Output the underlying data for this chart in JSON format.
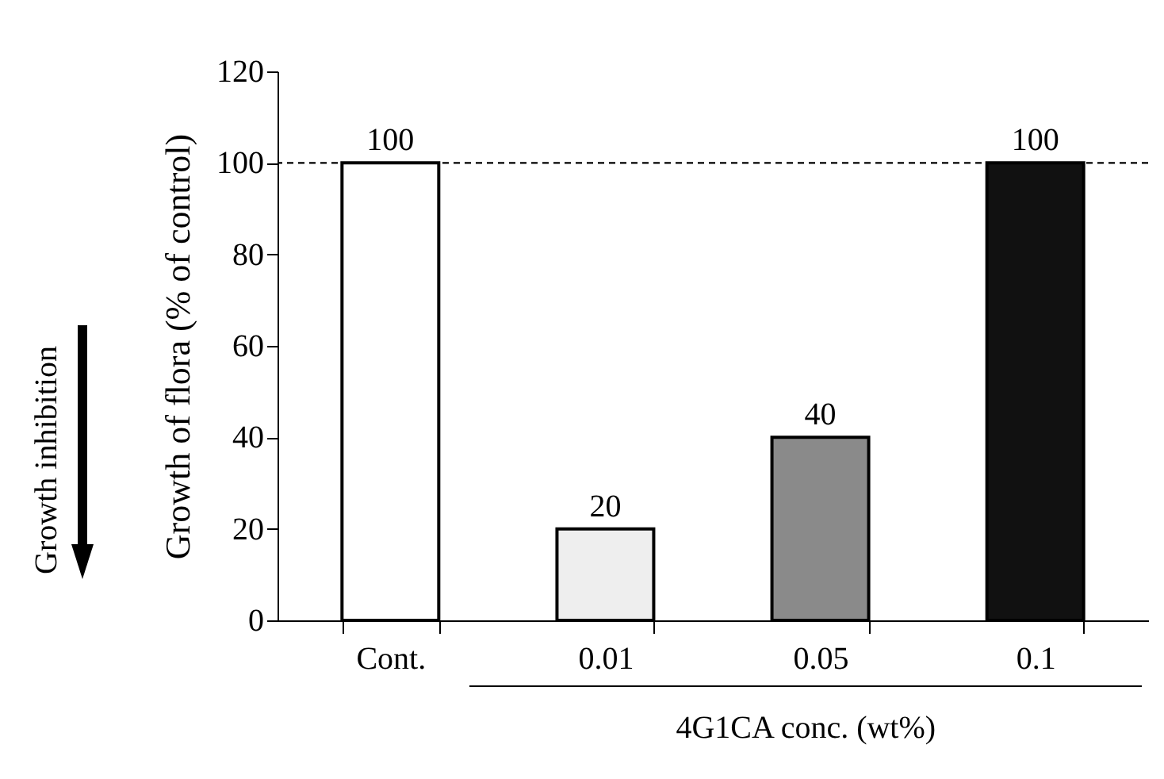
{
  "chart_data": {
    "type": "bar",
    "categories": [
      "Cont.",
      "0.01",
      "0.05",
      "0.1"
    ],
    "values": [
      100,
      20,
      40,
      100
    ],
    "colors": [
      "#ffffff",
      "#eeeeee",
      "#8a8a8a",
      "#111111"
    ],
    "ylabel": "Growth of flora (% of control)",
    "xlabel": "4G1CA conc. (wt%)",
    "ylim": [
      0,
      120
    ],
    "yticks": [
      0,
      20,
      40,
      60,
      80,
      100,
      120
    ],
    "grid": false,
    "data_labels": true,
    "ref_lines": [
      {
        "axis": "y",
        "value": 100,
        "color": "#000000",
        "line_style": "dashed"
      }
    ],
    "annotations": [
      "Growth inhibition"
    ]
  }
}
